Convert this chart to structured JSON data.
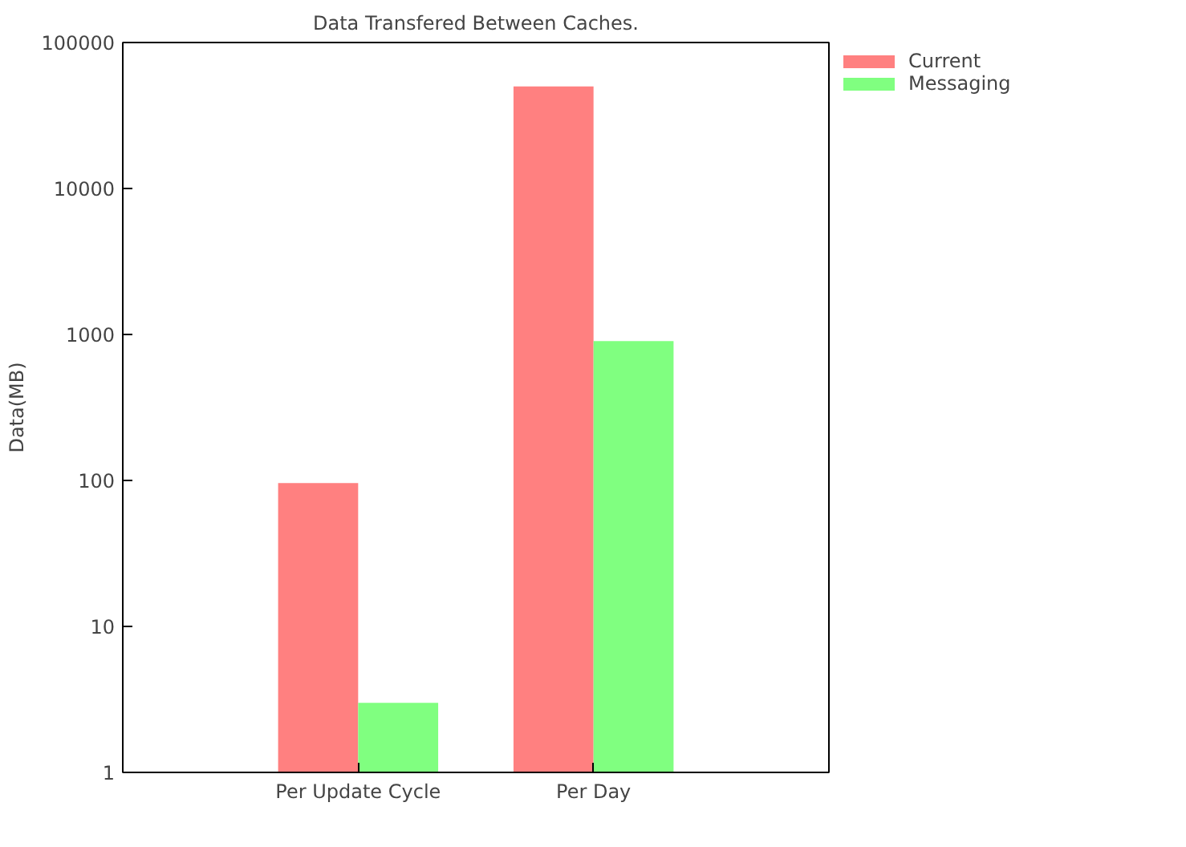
{
  "chart_data": {
    "type": "bar",
    "title": "Data Transfered Between Caches.",
    "ylabel": "Data(MB)",
    "categories": [
      "Per Update Cycle",
      "Per Day"
    ],
    "series": [
      {
        "name": "Current",
        "color": "#ff8080",
        "values": [
          96,
          50000
        ]
      },
      {
        "name": "Messaging",
        "color": "#80ff80",
        "values": [
          3,
          900
        ]
      }
    ],
    "log": true,
    "ylim": [
      1,
      100000
    ],
    "yticks": [
      1,
      10,
      100,
      1000,
      10000,
      100000
    ],
    "grid": false,
    "legend": "top right"
  }
}
